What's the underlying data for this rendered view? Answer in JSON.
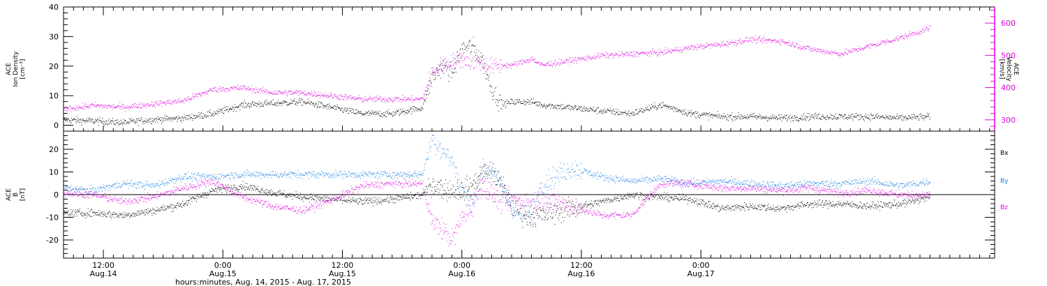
{
  "chart_data": [
    {
      "type": "scatter",
      "panel": "ion-density-velocity",
      "title": "",
      "ylabel_left": [
        "ACE",
        "Ion Density",
        "[cm⁻³]"
      ],
      "ylabel_right": [
        "ACE",
        "Velocity",
        "[km/s]"
      ],
      "ylim_left": [
        -2,
        40
      ],
      "ylim_right": [
        265,
        650
      ],
      "yticks_left": [
        "0",
        "10",
        "20",
        "30",
        "40"
      ],
      "yticks_right": [
        "300",
        "400",
        "500",
        "600"
      ],
      "grid": false,
      "series": [
        {
          "name": "",
          "color": "#000000",
          "axis": "left",
          "x": [
            0,
            3,
            6,
            9,
            12,
            15,
            18,
            21,
            24,
            27,
            30,
            33,
            36,
            37,
            38,
            39,
            40,
            41,
            42,
            43,
            44,
            45,
            46,
            47,
            48,
            51,
            54,
            57,
            60,
            63,
            66,
            69,
            72,
            75,
            78,
            81,
            84,
            87
          ],
          "y": [
            2,
            1.5,
            1,
            2,
            2.5,
            4,
            7,
            7.5,
            8,
            6,
            4,
            4,
            6,
            16,
            20,
            18,
            26,
            27,
            22,
            12,
            7,
            8,
            8,
            8,
            7,
            6,
            5,
            4,
            7,
            4,
            3,
            3,
            2.5,
            3,
            3,
            3,
            2.5,
            3
          ]
        },
        {
          "name": "",
          "color": "#e000e0",
          "axis": "right",
          "x": [
            0,
            3,
            6,
            9,
            12,
            15,
            18,
            21,
            24,
            27,
            30,
            33,
            36,
            37,
            38,
            39,
            40,
            41,
            42,
            43,
            44,
            45,
            46,
            47,
            48,
            51,
            54,
            57,
            60,
            63,
            66,
            69,
            72,
            75,
            78,
            81,
            84,
            87
          ],
          "y": [
            335,
            345,
            340,
            350,
            360,
            395,
            400,
            385,
            385,
            375,
            365,
            365,
            365,
            450,
            470,
            480,
            490,
            480,
            480,
            465,
            470,
            470,
            480,
            490,
            470,
            485,
            500,
            505,
            510,
            525,
            535,
            550,
            545,
            520,
            505,
            530,
            555,
            585
          ]
        }
      ]
    },
    {
      "type": "scatter",
      "panel": "magnetic-field",
      "title": "",
      "ylabel_left": [
        "ACE",
        "B",
        "[nT]"
      ],
      "ylim": [
        -28,
        28
      ],
      "yticks": [
        "-20",
        "-10",
        "0",
        "10",
        "20"
      ],
      "legend_position": "right",
      "grid": false,
      "series": [
        {
          "name": "Bx",
          "color": "#000000",
          "x": [
            0,
            3,
            6,
            9,
            12,
            15,
            18,
            21,
            24,
            27,
            30,
            33,
            36,
            37,
            38,
            39,
            40,
            41,
            42,
            43,
            44,
            45,
            46,
            47,
            48,
            51,
            54,
            57,
            60,
            63,
            66,
            69,
            72,
            75,
            78,
            81,
            84,
            87
          ],
          "y": [
            -8,
            -8,
            -9,
            -7,
            -4,
            2,
            4,
            1,
            -1,
            -2,
            -3,
            -2,
            0,
            5,
            3,
            2,
            2,
            4,
            10,
            10,
            5,
            -5,
            -8,
            -10,
            -9,
            -6,
            -3,
            0,
            -1,
            -2,
            -6,
            -5,
            -6,
            -4,
            -4,
            -5,
            -4,
            -1
          ]
        },
        {
          "name": "By",
          "color": "#1a7fe0",
          "x": [
            0,
            3,
            6,
            9,
            12,
            15,
            18,
            21,
            24,
            27,
            30,
            33,
            36,
            37,
            38,
            39,
            40,
            41,
            42,
            43,
            44,
            45,
            46,
            47,
            48,
            51,
            54,
            57,
            60,
            63,
            66,
            69,
            72,
            75,
            78,
            81,
            84,
            87
          ],
          "y": [
            3,
            2,
            5,
            4,
            8,
            8,
            9,
            9,
            9,
            9,
            9,
            9,
            9,
            25,
            20,
            15,
            2,
            -5,
            10,
            12,
            2,
            -5,
            -10,
            -8,
            5,
            12,
            8,
            6,
            7,
            5,
            6,
            5,
            4,
            5,
            5,
            6,
            4,
            6
          ]
        },
        {
          "name": "Bz",
          "color": "#e000e0",
          "x": [
            0,
            3,
            6,
            9,
            12,
            15,
            18,
            21,
            24,
            27,
            30,
            33,
            36,
            37,
            38,
            39,
            40,
            41,
            42,
            43,
            44,
            45,
            46,
            47,
            48,
            51,
            54,
            57,
            60,
            63,
            66,
            69,
            72,
            75,
            78,
            81,
            84,
            87
          ],
          "y": [
            1,
            0,
            -3,
            -1,
            3,
            6,
            -1,
            -5,
            -7,
            -2,
            4,
            5,
            5,
            -12,
            -15,
            -20,
            -10,
            -5,
            5,
            0,
            -3,
            -2,
            -3,
            -3,
            -2,
            -5,
            -9,
            -9,
            5,
            5,
            3,
            3,
            2,
            3,
            1,
            2,
            0,
            0
          ]
        }
      ]
    }
  ],
  "x_axis": {
    "label": "hours:minutes, Aug. 14, 2015 - Aug. 17, 2015",
    "xlim": [
      0,
      93.5
    ],
    "major_ticks": [
      {
        "x": 4,
        "time": "12:00",
        "date": "Aug.14"
      },
      {
        "x": 16,
        "time": "0:00",
        "date": "Aug.15"
      },
      {
        "x": 28,
        "time": "12:00",
        "date": "Aug.15"
      },
      {
        "x": 40,
        "time": "0:00",
        "date": "Aug.16"
      },
      {
        "x": 52,
        "time": "12:00",
        "date": "Aug.16"
      },
      {
        "x": 64,
        "time": "0:00",
        "date": "Aug.17"
      }
    ]
  }
}
